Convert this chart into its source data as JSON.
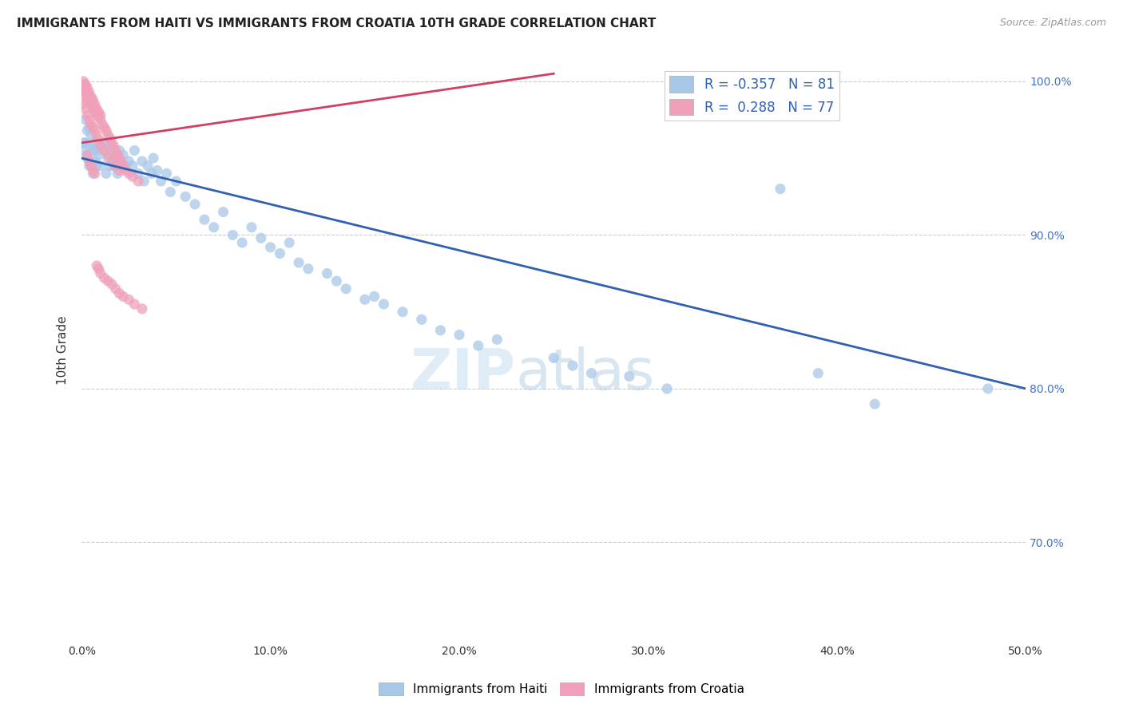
{
  "title": "IMMIGRANTS FROM HAITI VS IMMIGRANTS FROM CROATIA 10TH GRADE CORRELATION CHART",
  "source": "Source: ZipAtlas.com",
  "ylabel": "10th Grade",
  "legend_label_blue": "Immigrants from Haiti",
  "legend_label_pink": "Immigrants from Croatia",
  "R_blue": -0.357,
  "N_blue": 81,
  "R_pink": 0.288,
  "N_pink": 77,
  "xlim": [
    0.0,
    0.5
  ],
  "ylim": [
    0.635,
    1.015
  ],
  "xtick_labels": [
    "0.0%",
    "10.0%",
    "20.0%",
    "30.0%",
    "40.0%",
    "50.0%"
  ],
  "xtick_values": [
    0.0,
    0.1,
    0.2,
    0.3,
    0.4,
    0.5
  ],
  "ytick_labels": [
    "70.0%",
    "80.0%",
    "90.0%",
    "100.0%"
  ],
  "ytick_values": [
    0.7,
    0.8,
    0.9,
    1.0
  ],
  "color_blue": "#a8c8e8",
  "color_pink": "#f0a0b8",
  "trendline_blue": "#3060b0",
  "trendline_pink": "#d04060",
  "background": "#ffffff",
  "watermark_zip": "ZIP",
  "watermark_atlas": "atlas",
  "blue_points_x": [
    0.001,
    0.001,
    0.002,
    0.002,
    0.003,
    0.003,
    0.004,
    0.004,
    0.005,
    0.005,
    0.006,
    0.006,
    0.007,
    0.007,
    0.008,
    0.008,
    0.009,
    0.01,
    0.01,
    0.011,
    0.012,
    0.013,
    0.014,
    0.015,
    0.015,
    0.016,
    0.017,
    0.018,
    0.019,
    0.02,
    0.022,
    0.023,
    0.025,
    0.027,
    0.028,
    0.03,
    0.032,
    0.033,
    0.035,
    0.037,
    0.038,
    0.04,
    0.042,
    0.045,
    0.047,
    0.05,
    0.055,
    0.06,
    0.065,
    0.07,
    0.075,
    0.08,
    0.085,
    0.09,
    0.095,
    0.1,
    0.105,
    0.11,
    0.115,
    0.12,
    0.13,
    0.135,
    0.14,
    0.15,
    0.155,
    0.16,
    0.17,
    0.18,
    0.19,
    0.2,
    0.21,
    0.22,
    0.25,
    0.26,
    0.27,
    0.29,
    0.31,
    0.37,
    0.39,
    0.42,
    0.48
  ],
  "blue_points_y": [
    0.96,
    0.955,
    0.96,
    0.975,
    0.968,
    0.95,
    0.97,
    0.945,
    0.965,
    0.958,
    0.955,
    0.94,
    0.948,
    0.96,
    0.945,
    0.955,
    0.952,
    0.958,
    0.945,
    0.96,
    0.955,
    0.94,
    0.95,
    0.945,
    0.96,
    0.955,
    0.945,
    0.95,
    0.94,
    0.955,
    0.952,
    0.945,
    0.948,
    0.945,
    0.955,
    0.94,
    0.948,
    0.935,
    0.945,
    0.94,
    0.95,
    0.942,
    0.935,
    0.94,
    0.928,
    0.935,
    0.925,
    0.92,
    0.91,
    0.905,
    0.915,
    0.9,
    0.895,
    0.905,
    0.898,
    0.892,
    0.888,
    0.895,
    0.882,
    0.878,
    0.875,
    0.87,
    0.865,
    0.858,
    0.86,
    0.855,
    0.85,
    0.845,
    0.838,
    0.835,
    0.828,
    0.832,
    0.82,
    0.815,
    0.81,
    0.808,
    0.8,
    0.93,
    0.81,
    0.79,
    0.8
  ],
  "pink_points_x": [
    0.001,
    0.001,
    0.001,
    0.002,
    0.002,
    0.002,
    0.002,
    0.003,
    0.003,
    0.003,
    0.003,
    0.004,
    0.004,
    0.004,
    0.005,
    0.005,
    0.005,
    0.006,
    0.006,
    0.006,
    0.007,
    0.007,
    0.007,
    0.008,
    0.008,
    0.009,
    0.009,
    0.01,
    0.01,
    0.011,
    0.012,
    0.013,
    0.014,
    0.015,
    0.016,
    0.017,
    0.018,
    0.019,
    0.02,
    0.021,
    0.022,
    0.023,
    0.025,
    0.027,
    0.03,
    0.001,
    0.002,
    0.003,
    0.004,
    0.005,
    0.006,
    0.007,
    0.008,
    0.009,
    0.01,
    0.012,
    0.014,
    0.016,
    0.018,
    0.02,
    0.003,
    0.004,
    0.005,
    0.006,
    0.007,
    0.008,
    0.009,
    0.01,
    0.012,
    0.014,
    0.016,
    0.018,
    0.02,
    0.022,
    0.025,
    0.028,
    0.032
  ],
  "pink_points_y": [
    1.0,
    0.998,
    0.995,
    0.998,
    0.996,
    0.993,
    0.99,
    0.996,
    0.993,
    0.99,
    0.987,
    0.993,
    0.99,
    0.988,
    0.99,
    0.988,
    0.985,
    0.988,
    0.985,
    0.982,
    0.985,
    0.982,
    0.98,
    0.982,
    0.978,
    0.98,
    0.977,
    0.978,
    0.975,
    0.972,
    0.97,
    0.968,
    0.965,
    0.963,
    0.96,
    0.958,
    0.955,
    0.952,
    0.95,
    0.948,
    0.945,
    0.942,
    0.94,
    0.938,
    0.935,
    0.985,
    0.982,
    0.978,
    0.975,
    0.972,
    0.97,
    0.968,
    0.965,
    0.962,
    0.958,
    0.955,
    0.952,
    0.948,
    0.945,
    0.942,
    0.952,
    0.948,
    0.945,
    0.942,
    0.94,
    0.88,
    0.878,
    0.875,
    0.872,
    0.87,
    0.868,
    0.865,
    0.862,
    0.86,
    0.858,
    0.855,
    0.852
  ],
  "blue_trendline_x": [
    0.0,
    0.5
  ],
  "blue_trendline_y": [
    0.95,
    0.8
  ],
  "pink_trendline_x": [
    0.0,
    0.25
  ],
  "pink_trendline_y": [
    0.96,
    1.005
  ]
}
